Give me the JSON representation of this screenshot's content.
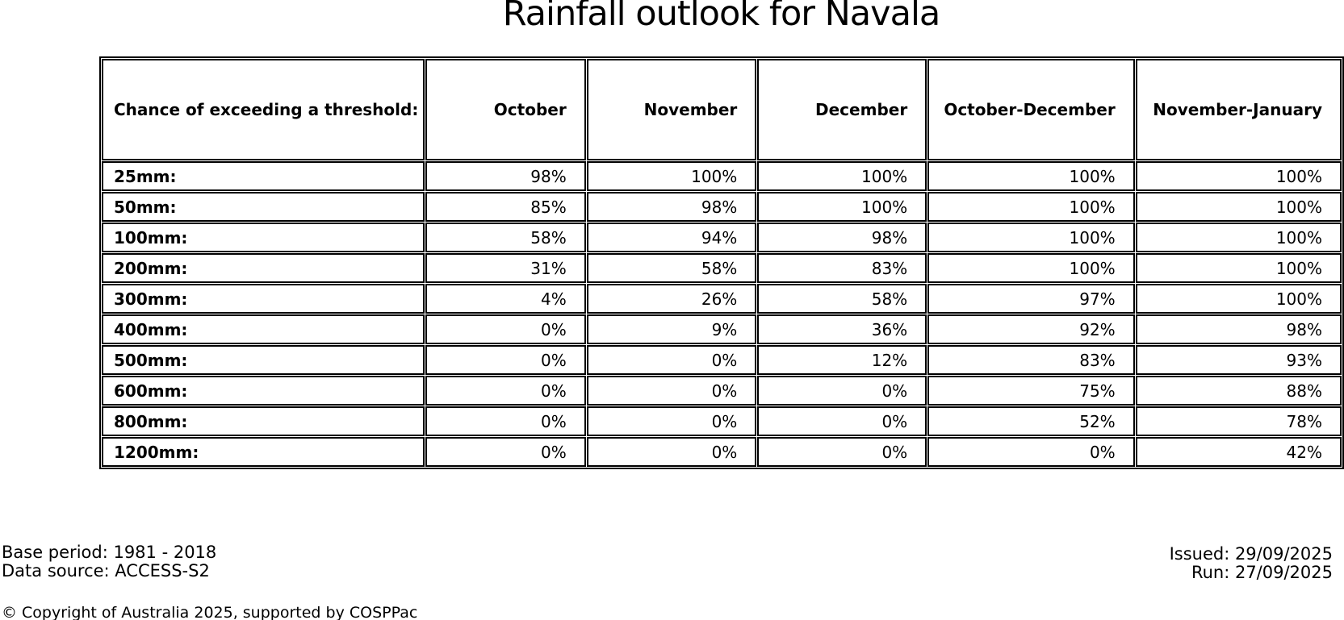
{
  "title": "Rainfall outlook for Navala",
  "colors": {
    "background": "#ffffff",
    "text": "#000000",
    "border": "#000000"
  },
  "table": {
    "corner_header": "Chance of\nexceeding\na threshold:",
    "columns": [
      "October",
      "November",
      "December",
      "October-December",
      "November-January"
    ],
    "rows": [
      {
        "label": "25mm:",
        "values": [
          "98%",
          "100%",
          "100%",
          "100%",
          "100%"
        ]
      },
      {
        "label": "50mm:",
        "values": [
          "85%",
          "98%",
          "100%",
          "100%",
          "100%"
        ]
      },
      {
        "label": "100mm:",
        "values": [
          "58%",
          "94%",
          "98%",
          "100%",
          "100%"
        ]
      },
      {
        "label": "200mm:",
        "values": [
          "31%",
          "58%",
          "83%",
          "100%",
          "100%"
        ]
      },
      {
        "label": "300mm:",
        "values": [
          "4%",
          "26%",
          "58%",
          "97%",
          "100%"
        ]
      },
      {
        "label": "400mm:",
        "values": [
          "0%",
          "9%",
          "36%",
          "92%",
          "98%"
        ]
      },
      {
        "label": "500mm:",
        "values": [
          "0%",
          "0%",
          "12%",
          "83%",
          "93%"
        ]
      },
      {
        "label": "600mm:",
        "values": [
          "0%",
          "0%",
          "0%",
          "75%",
          "88%"
        ]
      },
      {
        "label": "800mm:",
        "values": [
          "0%",
          "0%",
          "0%",
          "52%",
          "78%"
        ]
      },
      {
        "label": "1200mm:",
        "values": [
          "0%",
          "0%",
          "0%",
          "0%",
          "42%"
        ]
      }
    ]
  },
  "footer": {
    "base_period": "Base period: 1981 - 2018",
    "data_source": "Data source: ACCESS-S2",
    "issued": "Issued: 29/09/2025",
    "run": "Run: 27/09/2025",
    "copyright": "© Copyright of Australia 2025, supported by COSPPac"
  },
  "chart_data": {
    "type": "table",
    "title": "Rainfall outlook for Navala",
    "row_header": "Chance of exceeding a threshold:",
    "columns": [
      "October",
      "November",
      "December",
      "October-December",
      "November-January"
    ],
    "thresholds_mm": [
      25,
      50,
      100,
      200,
      300,
      400,
      500,
      600,
      800,
      1200
    ],
    "values_percent": [
      [
        98,
        100,
        100,
        100,
        100
      ],
      [
        85,
        98,
        100,
        100,
        100
      ],
      [
        58,
        94,
        98,
        100,
        100
      ],
      [
        31,
        58,
        83,
        100,
        100
      ],
      [
        4,
        26,
        58,
        97,
        100
      ],
      [
        0,
        9,
        36,
        92,
        98
      ],
      [
        0,
        0,
        12,
        83,
        93
      ],
      [
        0,
        0,
        0,
        75,
        88
      ],
      [
        0,
        0,
        0,
        52,
        78
      ],
      [
        0,
        0,
        0,
        0,
        42
      ]
    ],
    "base_period": "1981 - 2018",
    "data_source": "ACCESS-S2",
    "issued_date": "29/09/2025",
    "run_date": "27/09/2025"
  }
}
